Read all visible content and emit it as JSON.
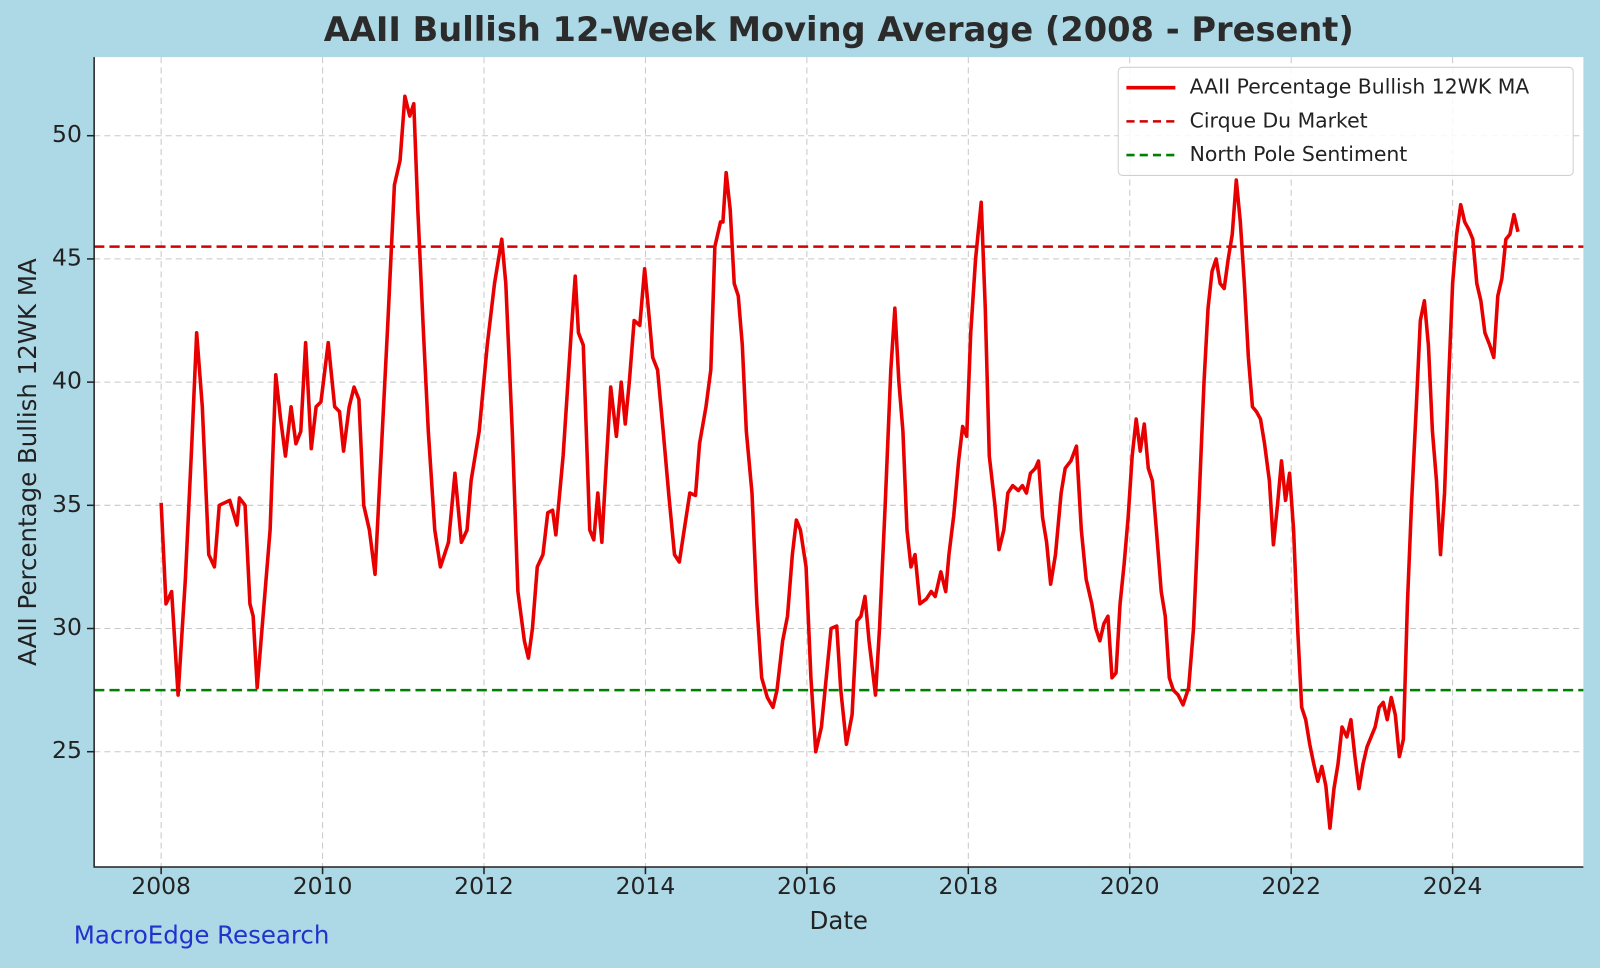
{
  "chart_data": {
    "type": "line",
    "title": "AAII Bullish 12-Week Moving Average (2008 - Present)",
    "xlabel": "Date",
    "ylabel": "AAII Percentage Bullish 12WK MA",
    "watermark": "MacroEdge Research",
    "grid": true,
    "legend": "upper right",
    "xlim": [
      2007.17,
      2025.62
    ],
    "ylim": [
      20.32,
      53.19
    ],
    "xticks": [
      2008,
      2010,
      2012,
      2014,
      2016,
      2018,
      2020,
      2022,
      2024
    ],
    "yticks": [
      25,
      30,
      35,
      40,
      45,
      50
    ],
    "x": [
      2008.0,
      2008.06,
      2008.13,
      2008.21,
      2008.3,
      2008.38,
      2008.44,
      2008.51,
      2008.59,
      2008.66,
      2008.72,
      2008.85,
      2008.94,
      2008.97,
      2009.04,
      2009.1,
      2009.14,
      2009.19,
      2009.25,
      2009.35,
      2009.42,
      2009.48,
      2009.54,
      2009.61,
      2009.67,
      2009.73,
      2009.79,
      2009.86,
      2009.92,
      2009.98,
      2010.07,
      2010.15,
      2010.21,
      2010.26,
      2010.33,
      2010.39,
      2010.45,
      2010.51,
      2010.58,
      2010.65,
      2010.74,
      2010.81,
      2010.89,
      2010.96,
      2011.02,
      2011.08,
      2011.13,
      2011.18,
      2011.25,
      2011.31,
      2011.39,
      2011.46,
      2011.56,
      2011.64,
      2011.72,
      2011.79,
      2011.84,
      2011.94,
      2012.04,
      2012.13,
      2012.22,
      2012.27,
      2012.35,
      2012.42,
      2012.5,
      2012.55,
      2012.6,
      2012.66,
      2012.73,
      2012.79,
      2012.85,
      2012.89,
      2012.98,
      2013.08,
      2013.13,
      2013.17,
      2013.23,
      2013.31,
      2013.36,
      2013.41,
      2013.46,
      2013.52,
      2013.57,
      2013.64,
      2013.7,
      2013.75,
      2013.8,
      2013.86,
      2013.93,
      2013.99,
      2014.05,
      2014.09,
      2014.15,
      2014.22,
      2014.29,
      2014.36,
      2014.42,
      2014.48,
      2014.55,
      2014.62,
      2014.67,
      2014.75,
      2014.81,
      2014.86,
      2014.93,
      2014.96,
      2015.0,
      2015.05,
      2015.1,
      2015.15,
      2015.2,
      2015.25,
      2015.32,
      2015.38,
      2015.44,
      2015.51,
      2015.58,
      2015.63,
      2015.7,
      2015.76,
      2015.82,
      2015.87,
      2015.92,
      2015.99,
      2016.05,
      2016.11,
      2016.18,
      2016.24,
      2016.3,
      2016.37,
      2016.42,
      2016.49,
      2016.56,
      2016.62,
      2016.67,
      2016.72,
      2016.77,
      2016.85,
      2016.9,
      2016.97,
      2017.04,
      2017.09,
      2017.14,
      2017.19,
      2017.24,
      2017.29,
      2017.34,
      2017.4,
      2017.48,
      2017.54,
      2017.59,
      2017.66,
      2017.72,
      2017.76,
      2017.82,
      2017.88,
      2017.93,
      2017.98,
      2018.03,
      2018.09,
      2018.12,
      2018.16,
      2018.21,
      2018.26,
      2018.33,
      2018.38,
      2018.44,
      2018.49,
      2018.55,
      2018.62,
      2018.67,
      2018.72,
      2018.77,
      2018.83,
      2018.87,
      2018.92,
      2018.97,
      2019.02,
      2019.08,
      2019.15,
      2019.2,
      2019.27,
      2019.34,
      2019.4,
      2019.46,
      2019.53,
      2019.58,
      2019.63,
      2019.68,
      2019.73,
      2019.78,
      2019.83,
      2019.88,
      2019.93,
      2019.98,
      2020.03,
      2020.08,
      2020.13,
      2020.18,
      2020.23,
      2020.28,
      2020.33,
      2020.39,
      2020.44,
      2020.49,
      2020.54,
      2020.6,
      2020.66,
      2020.73,
      2020.79,
      2020.85,
      2020.92,
      2020.97,
      2021.02,
      2021.07,
      2021.12,
      2021.17,
      2021.22,
      2021.27,
      2021.32,
      2021.37,
      2021.42,
      2021.47,
      2021.52,
      2021.57,
      2021.62,
      2021.67,
      2021.73,
      2021.78,
      2021.83,
      2021.88,
      2021.93,
      2021.98,
      2022.03,
      2022.08,
      2022.13,
      2022.18,
      2022.23,
      2022.28,
      2022.33,
      2022.38,
      2022.43,
      2022.48,
      2022.53,
      2022.58,
      2022.63,
      2022.69,
      2022.74,
      2022.79,
      2022.84,
      2022.89,
      2022.94,
      2022.99,
      2023.04,
      2023.09,
      2023.14,
      2023.19,
      2023.24,
      2023.29,
      2023.34,
      2023.39,
      2023.44,
      2023.49,
      2023.55,
      2023.6,
      2023.65,
      2023.7,
      2023.75,
      2023.8,
      2023.85,
      2023.9,
      2023.95,
      2024.0,
      2024.05,
      2024.1,
      2024.15,
      2024.2,
      2024.25,
      2024.3,
      2024.35,
      2024.4,
      2024.46,
      2024.51,
      2024.56,
      2024.61,
      2024.66,
      2024.71,
      2024.76,
      2024.81
    ],
    "series": [
      {
        "name": "AAII Percentage Bullish 12WK MA",
        "color": "#e80000",
        "values": [
          35.1,
          31,
          31.5,
          27.3,
          32,
          37.5,
          42,
          39,
          33,
          32.5,
          35,
          35.2,
          34.2,
          35.3,
          35,
          31,
          30.5,
          27.6,
          30,
          34,
          40.3,
          38.5,
          37,
          39,
          37.5,
          38,
          41.6,
          37.3,
          39,
          39.2,
          41.6,
          39,
          38.8,
          37.2,
          39,
          39.8,
          39.3,
          35,
          34,
          32.2,
          38,
          42.5,
          48,
          49,
          51.6,
          50.8,
          51.3,
          47,
          42,
          38,
          34,
          32.5,
          33.5,
          36.3,
          33.5,
          34,
          36,
          38,
          41.5,
          44,
          45.8,
          44,
          38,
          31.5,
          29.5,
          28.8,
          30,
          32.5,
          33,
          34.7,
          34.8,
          33.8,
          37,
          42,
          44.3,
          42,
          41.5,
          34,
          33.6,
          35.5,
          33.5,
          37,
          39.8,
          37.8,
          40,
          38.3,
          40,
          42.5,
          42.3,
          44.6,
          42.5,
          41,
          40.5,
          38,
          35.4,
          33,
          32.7,
          34,
          35.5,
          35.4,
          37.5,
          39,
          40.5,
          45.5,
          46.5,
          46.5,
          48.5,
          47,
          44,
          43.5,
          41.5,
          38,
          35.5,
          31,
          28,
          27.2,
          26.8,
          27.5,
          29.5,
          30.5,
          33,
          34.4,
          34,
          32.5,
          28,
          25,
          26,
          28,
          30,
          30.1,
          27.5,
          25.3,
          26.5,
          30.3,
          30.5,
          31.3,
          29.5,
          27.3,
          30,
          35,
          40.5,
          43,
          40,
          38,
          34,
          32.5,
          33,
          31,
          31.2,
          31.5,
          31.3,
          32.3,
          31.5,
          33,
          34.6,
          36.8,
          38.2,
          37.8,
          42,
          45,
          46,
          47.3,
          43,
          37,
          35,
          33.2,
          34,
          35.5,
          35.8,
          35.6,
          35.8,
          35.5,
          36.3,
          36.5,
          36.8,
          34.5,
          33.5,
          31.8,
          33,
          35.5,
          36.5,
          36.8,
          37.4,
          34,
          32,
          31,
          30,
          29.5,
          30.2,
          30.5,
          28,
          28.2,
          31,
          32.6,
          34.5,
          37,
          38.5,
          37.2,
          38.3,
          36.5,
          36,
          34,
          31.5,
          30.5,
          28,
          27.5,
          27.3,
          26.9,
          27.6,
          30,
          34.5,
          40,
          43,
          44.5,
          45,
          44,
          43.8,
          45,
          46,
          48.2,
          46.5,
          44,
          41,
          39,
          38.8,
          38.5,
          37.5,
          36,
          33.4,
          35,
          36.8,
          35.2,
          36.3,
          34,
          30,
          26.8,
          26.3,
          25.3,
          24.5,
          23.8,
          24.4,
          23.6,
          21.9,
          23.5,
          24.5,
          26,
          25.6,
          26.3,
          24.8,
          23.5,
          24.5,
          25.2,
          25.6,
          26,
          26.8,
          27,
          26.3,
          27.2,
          26.5,
          24.8,
          25.5,
          31,
          35,
          39,
          42.5,
          43.3,
          41.5,
          38,
          36,
          33,
          35.5,
          40,
          44,
          46,
          47.2,
          46.5,
          46.2,
          45.8,
          44,
          43.3,
          42,
          41.5,
          41,
          43.5,
          44.2,
          45.8,
          46,
          46.8,
          46.1
        ]
      }
    ],
    "hlines": [
      {
        "name": "Cirque Du Market",
        "color": "#d00000",
        "value": 45.5
      },
      {
        "name": "North Pole Sentiment",
        "color": "#008000",
        "value": 27.5
      }
    ]
  }
}
